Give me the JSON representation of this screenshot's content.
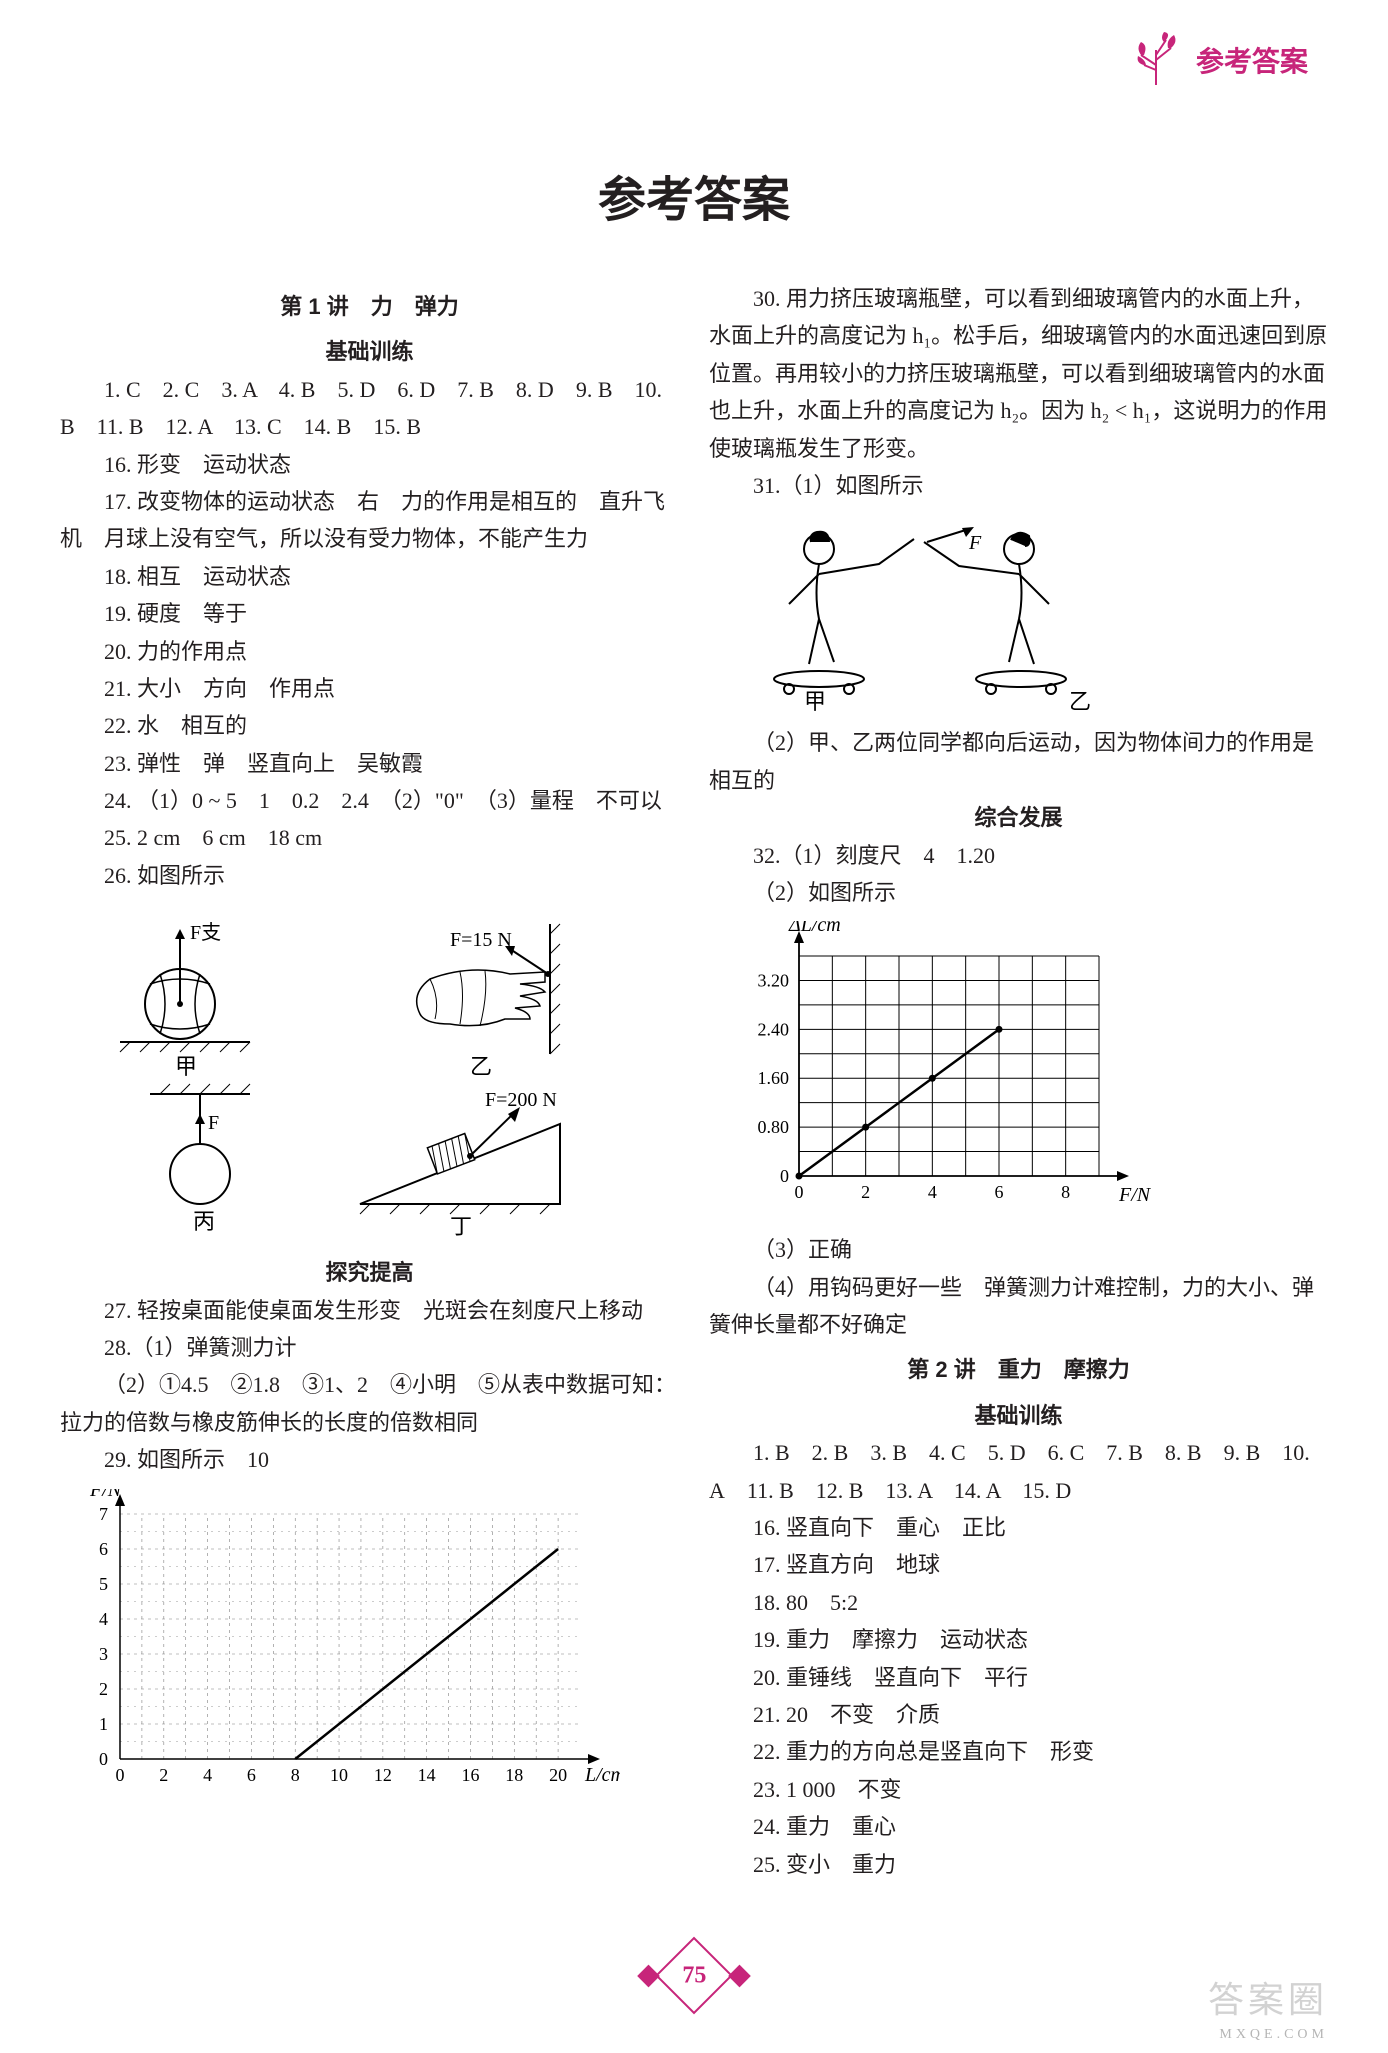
{
  "header_label": "参考答案",
  "header_icon_color": "#c7257a",
  "page_title": "参考答案",
  "accent_color": "#c7257a",
  "text_color": "#231f20",
  "footer_page": "75",
  "watermarks": {
    "w1": "答案圈",
    "w2": "MXQE.COM"
  },
  "lesson1": {
    "title": "第 1 讲　力　弹力",
    "sub_basic": "基础训练",
    "mcq": "1. C　2. C　3. A　4. B　5. D　6. D　7. B　8. D　9. B　10. B　11. B　12. A　13. C　14. B　15. B",
    "a16": "16. 形变　运动状态",
    "a17": "17. 改变物体的运动状态　右　力的作用是相互的　直升飞机　月球上没有空气，所以没有受力物体，不能产生力",
    "a18": "18. 相互　运动状态",
    "a19": "19. 硬度　等于",
    "a20": "20. 力的作用点",
    "a21": "21. 大小　方向　作用点",
    "a22": "22. 水　相互的",
    "a23": "23. 弹性　弹　竖直向上　吴敏霞",
    "a24": "24. （1）0 ~ 5　1　0.2　2.4　（2）\"0\"　（3）量程　不可以",
    "a25": "25. 2 cm　6 cm　18 cm",
    "a26": "26. 如图所示",
    "sub_explore": "探究提高",
    "a27": "27. 轻按桌面能使桌面发生形变　光斑会在刻度尺上移动",
    "a28_1": "28.（1）弹簧测力计",
    "a28_2": "（2）①4.5　②1.8　③1、2　④小明　⑤从表中数据可知：拉力的倍数与橡皮筋伸长的长度的倍数相同",
    "a29": "29. 如图所示　10"
  },
  "diagrams26": {
    "jia": {
      "label": "甲",
      "force_label": "F支"
    },
    "yi": {
      "label": "乙",
      "force_label": "F=15 N"
    },
    "bing": {
      "label": "丙",
      "force_label": "F"
    },
    "ding": {
      "label": "丁",
      "force_label": "F=200 N"
    }
  },
  "chart29": {
    "type": "line",
    "xlabel": "L/cm",
    "ylabel": "F/N",
    "xlim": [
      0,
      21
    ],
    "ylim": [
      0,
      7
    ],
    "xticks": [
      0,
      2,
      4,
      6,
      8,
      10,
      12,
      14,
      16,
      18,
      20
    ],
    "yticks": [
      0,
      1,
      2,
      3,
      4,
      5,
      6,
      7
    ],
    "line_start": [
      8,
      0
    ],
    "line_end": [
      20,
      6
    ],
    "grid_color": "#808080",
    "line_color": "#000000",
    "background": "#ffffff"
  },
  "right": {
    "a30": "30. 用力挤压玻璃瓶壁，可以看到细玻璃管内的水面上升，水面上升的高度记为 h₁。松手后，细玻璃管内的水面迅速回到原位置。再用较小的力挤压玻璃瓶壁，可以看到细玻璃管内的水面也上升，水面上升的高度记为 h₂。因为 h₂ < h₁，这说明力的作用使玻璃瓶发生了形变。",
    "a31_1": "31.（1）如图所示",
    "skate_diagram": {
      "left_label": "甲",
      "right_label": "乙",
      "force_label": "F"
    },
    "a31_2": "（2）甲、乙两位同学都向后运动，因为物体间力的作用是相互的",
    "sub_comp": "综合发展",
    "a32_1": "32.（1）刻度尺　4　1.20",
    "a32_2": "（2）如图所示",
    "a32_3": "（3）正确",
    "a32_4": "（4）用钩码更好一些　弹簧测力计难控制，力的大小、弹簧伸长量都不好确定"
  },
  "chart32": {
    "type": "line",
    "xlabel": "F/N",
    "ylabel": "ΔL/cm",
    "xlim": [
      0,
      9
    ],
    "ylim": [
      0,
      3.6
    ],
    "xticks": [
      0,
      2,
      4,
      6,
      8
    ],
    "yticks": [
      0,
      0.8,
      1.6,
      2.4,
      3.2
    ],
    "ytick_labels": [
      "0",
      "0.80",
      "1.60",
      "2.40",
      "3.20"
    ],
    "points": [
      [
        0,
        0
      ],
      [
        2,
        0.8
      ],
      [
        4,
        1.6
      ],
      [
        6,
        2.4
      ]
    ],
    "grid_color": "#000000",
    "line_color": "#000000",
    "background": "#ffffff"
  },
  "lesson2": {
    "title": "第 2 讲　重力　摩擦力",
    "sub_basic": "基础训练",
    "mcq": "1. B　2. B　3. B　4. C　5. D　6. C　7. B　8. B　9. B　10. A　11. B　12. B　13. A　14. A　15. D",
    "a16": "16. 竖直向下　重心　正比",
    "a17": "17. 竖直方向　地球",
    "a18": "18. 80　5:2",
    "a19": "19. 重力　摩擦力　运动状态",
    "a20": "20. 重锤线　竖直向下　平行",
    "a21": "21. 20　不变　介质",
    "a22": "22. 重力的方向总是竖直向下　形变",
    "a23": "23. 1 000　不变",
    "a24": "24. 重力　重心",
    "a25": "25. 变小　重力"
  }
}
